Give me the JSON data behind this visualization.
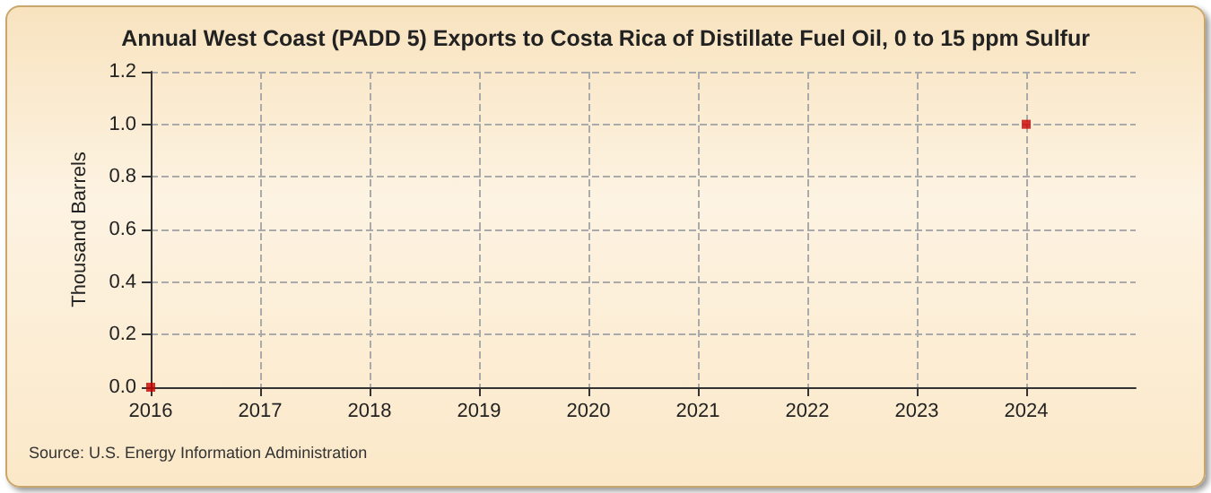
{
  "chart_data": {
    "type": "scatter",
    "title": "Annual West Coast (PADD 5) Exports to Costa Rica of Distillate Fuel Oil, 0 to 15 ppm Sulfur",
    "ylabel": "Thousand Barrels",
    "annotations": [
      "Source: U.S. Energy Information Administration"
    ],
    "x": [
      2016,
      2024
    ],
    "series": [
      {
        "color": "#cc0000",
        "values": [
          0,
          1.0
        ]
      }
    ],
    "xlim": [
      2016,
      2025
    ],
    "xticks": [
      2016,
      2017,
      2018,
      2019,
      2020,
      2021,
      2022,
      2023,
      2024
    ],
    "ylim": [
      0,
      1.2
    ],
    "yticks": [
      {
        "value": 0,
        "label": "0.0"
      },
      {
        "value": 0.2,
        "label": "0.2"
      },
      {
        "value": 0.4,
        "label": "0.4"
      },
      {
        "value": 0.6,
        "label": "0.6"
      },
      {
        "value": 0.8,
        "label": "0.8"
      },
      {
        "value": 1.0,
        "label": "1.0"
      },
      {
        "value": 1.2,
        "label": "1.2"
      }
    ],
    "grid": true,
    "marker": "square"
  }
}
